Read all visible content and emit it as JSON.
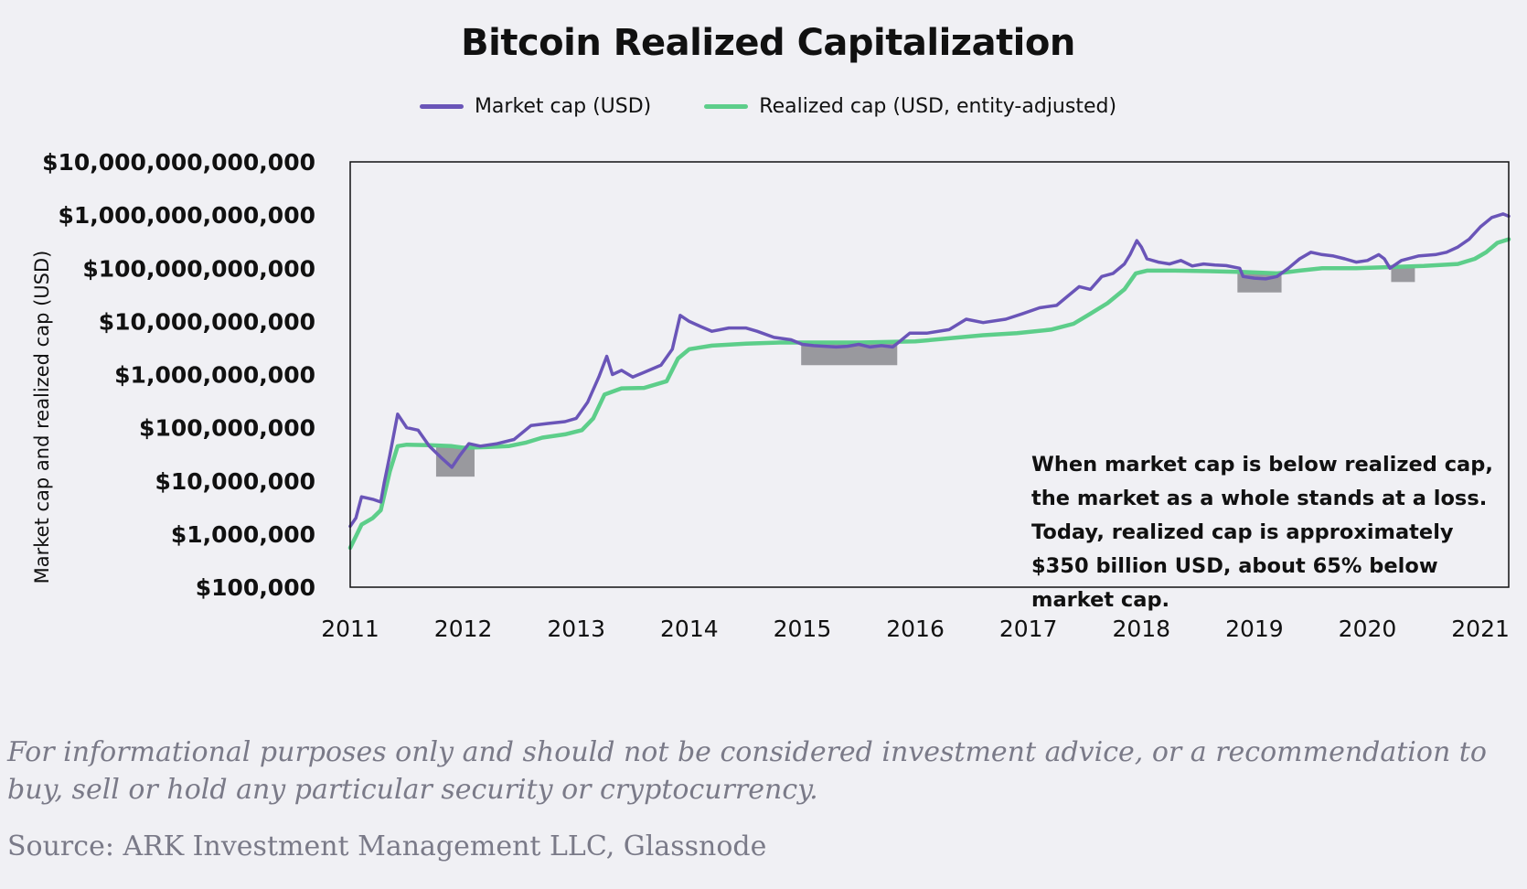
{
  "chart_data": {
    "type": "line",
    "title": "Bitcoin Realized Capitalization",
    "ylabel": "Market cap and realized cap (USD)",
    "xlabel": "",
    "y_scale": "log10",
    "ylim": [
      100000,
      10000000000000
    ],
    "xlim": [
      2011.0,
      2021.25
    ],
    "grid": false,
    "legend_position": "top-center",
    "y_ticks": [
      {
        "value": 100000,
        "label": "$100,000"
      },
      {
        "value": 1000000,
        "label": "$1,000,000"
      },
      {
        "value": 10000000,
        "label": "$10,000,000"
      },
      {
        "value": 100000000,
        "label": "$100,000,000"
      },
      {
        "value": 1000000000,
        "label": "$1,000,000,000"
      },
      {
        "value": 10000000000,
        "label": "$10,000,000,000"
      },
      {
        "value": 100000000000,
        "label": "$100,000,000,000"
      },
      {
        "value": 1000000000000,
        "label": "$1,000,000,000,000"
      },
      {
        "value": 10000000000000,
        "label": "$10,000,000,000,000"
      }
    ],
    "x_ticks": [
      {
        "value": 2011,
        "label": "2011"
      },
      {
        "value": 2012,
        "label": "2012"
      },
      {
        "value": 2013,
        "label": "2013"
      },
      {
        "value": 2014,
        "label": "2014"
      },
      {
        "value": 2015,
        "label": "2015"
      },
      {
        "value": 2016,
        "label": "2016"
      },
      {
        "value": 2017,
        "label": "2017"
      },
      {
        "value": 2018,
        "label": "2018"
      },
      {
        "value": 2019,
        "label": "2019"
      },
      {
        "value": 2020,
        "label": "2020"
      },
      {
        "value": 2021,
        "label": "2021"
      }
    ],
    "series": [
      {
        "name": "Market cap (USD)",
        "color": "#6a55b8",
        "points": [
          [
            2011.0,
            1400000
          ],
          [
            2011.05,
            2000000
          ],
          [
            2011.1,
            5000000
          ],
          [
            2011.2,
            4500000
          ],
          [
            2011.27,
            4000000
          ],
          [
            2011.3,
            9000000
          ],
          [
            2011.35,
            30000000
          ],
          [
            2011.42,
            180000000
          ],
          [
            2011.5,
            100000000
          ],
          [
            2011.6,
            90000000
          ],
          [
            2011.7,
            45000000
          ],
          [
            2011.8,
            28000000
          ],
          [
            2011.9,
            18000000
          ],
          [
            2011.97,
            30000000
          ],
          [
            2012.05,
            50000000
          ],
          [
            2012.15,
            45000000
          ],
          [
            2012.3,
            50000000
          ],
          [
            2012.45,
            60000000
          ],
          [
            2012.6,
            110000000
          ],
          [
            2012.75,
            120000000
          ],
          [
            2012.9,
            130000000
          ],
          [
            2013.0,
            150000000
          ],
          [
            2013.1,
            300000000
          ],
          [
            2013.2,
            900000000
          ],
          [
            2013.27,
            2200000000
          ],
          [
            2013.32,
            1000000000
          ],
          [
            2013.4,
            1200000000
          ],
          [
            2013.5,
            900000000
          ],
          [
            2013.6,
            1100000000
          ],
          [
            2013.75,
            1500000000
          ],
          [
            2013.85,
            3000000000
          ],
          [
            2013.92,
            13000000000
          ],
          [
            2014.0,
            10000000000
          ],
          [
            2014.1,
            8000000000
          ],
          [
            2014.2,
            6500000000
          ],
          [
            2014.35,
            7500000000
          ],
          [
            2014.5,
            7500000000
          ],
          [
            2014.6,
            6500000000
          ],
          [
            2014.75,
            5000000000
          ],
          [
            2014.9,
            4500000000
          ],
          [
            2015.0,
            3700000000
          ],
          [
            2015.1,
            3500000000
          ],
          [
            2015.2,
            3400000000
          ],
          [
            2015.3,
            3300000000
          ],
          [
            2015.4,
            3400000000
          ],
          [
            2015.5,
            3700000000
          ],
          [
            2015.6,
            3300000000
          ],
          [
            2015.7,
            3500000000
          ],
          [
            2015.8,
            3300000000
          ],
          [
            2015.85,
            4000000000
          ],
          [
            2015.95,
            6000000000
          ],
          [
            2016.1,
            6000000000
          ],
          [
            2016.3,
            7000000000
          ],
          [
            2016.45,
            11000000000
          ],
          [
            2016.6,
            9500000000
          ],
          [
            2016.8,
            11000000000
          ],
          [
            2016.95,
            14000000000
          ],
          [
            2017.1,
            18000000000
          ],
          [
            2017.25,
            20000000000
          ],
          [
            2017.35,
            30000000000
          ],
          [
            2017.45,
            45000000000
          ],
          [
            2017.55,
            40000000000
          ],
          [
            2017.65,
            70000000000
          ],
          [
            2017.75,
            80000000000
          ],
          [
            2017.85,
            120000000000
          ],
          [
            2017.9,
            180000000000
          ],
          [
            2017.96,
            330000000000
          ],
          [
            2018.0,
            250000000000
          ],
          [
            2018.05,
            150000000000
          ],
          [
            2018.15,
            130000000000
          ],
          [
            2018.25,
            120000000000
          ],
          [
            2018.35,
            140000000000
          ],
          [
            2018.45,
            110000000000
          ],
          [
            2018.55,
            120000000000
          ],
          [
            2018.65,
            115000000000
          ],
          [
            2018.75,
            112000000000
          ],
          [
            2018.87,
            100000000000
          ],
          [
            2018.9,
            70000000000
          ],
          [
            2019.0,
            65000000000
          ],
          [
            2019.1,
            63000000000
          ],
          [
            2019.2,
            70000000000
          ],
          [
            2019.3,
            100000000000
          ],
          [
            2019.4,
            150000000000
          ],
          [
            2019.5,
            200000000000
          ],
          [
            2019.6,
            180000000000
          ],
          [
            2019.7,
            170000000000
          ],
          [
            2019.8,
            150000000000
          ],
          [
            2019.9,
            130000000000
          ],
          [
            2020.0,
            140000000000
          ],
          [
            2020.1,
            180000000000
          ],
          [
            2020.15,
            150000000000
          ],
          [
            2020.2,
            100000000000
          ],
          [
            2020.3,
            140000000000
          ],
          [
            2020.45,
            170000000000
          ],
          [
            2020.6,
            180000000000
          ],
          [
            2020.7,
            200000000000
          ],
          [
            2020.8,
            250000000000
          ],
          [
            2020.9,
            350000000000
          ],
          [
            2021.0,
            600000000000
          ],
          [
            2021.1,
            900000000000
          ],
          [
            2021.2,
            1050000000000
          ],
          [
            2021.25,
            950000000000
          ]
        ]
      },
      {
        "name": "Realized cap (USD, entity-adjusted)",
        "color": "#5dce8a",
        "points": [
          [
            2011.0,
            550000
          ],
          [
            2011.05,
            900000
          ],
          [
            2011.1,
            1500000
          ],
          [
            2011.2,
            2000000
          ],
          [
            2011.27,
            2800000
          ],
          [
            2011.35,
            15000000
          ],
          [
            2011.42,
            45000000
          ],
          [
            2011.5,
            48000000
          ],
          [
            2011.7,
            47000000
          ],
          [
            2011.9,
            45000000
          ],
          [
            2012.0,
            42000000
          ],
          [
            2012.2,
            43000000
          ],
          [
            2012.4,
            45000000
          ],
          [
            2012.55,
            52000000
          ],
          [
            2012.7,
            65000000
          ],
          [
            2012.9,
            75000000
          ],
          [
            2013.05,
            90000000
          ],
          [
            2013.15,
            150000000
          ],
          [
            2013.25,
            420000000
          ],
          [
            2013.4,
            550000000
          ],
          [
            2013.6,
            560000000
          ],
          [
            2013.8,
            750000000
          ],
          [
            2013.9,
            2000000000
          ],
          [
            2014.0,
            3000000000
          ],
          [
            2014.2,
            3500000000
          ],
          [
            2014.5,
            3800000000
          ],
          [
            2014.8,
            4000000000
          ],
          [
            2015.0,
            4000000000
          ],
          [
            2015.5,
            4000000000
          ],
          [
            2016.0,
            4200000000
          ],
          [
            2016.3,
            4800000000
          ],
          [
            2016.6,
            5500000000
          ],
          [
            2016.9,
            6000000000
          ],
          [
            2017.2,
            7000000000
          ],
          [
            2017.4,
            9000000000
          ],
          [
            2017.55,
            14000000000
          ],
          [
            2017.7,
            22000000000
          ],
          [
            2017.85,
            40000000000
          ],
          [
            2017.95,
            80000000000
          ],
          [
            2018.05,
            90000000000
          ],
          [
            2018.3,
            90000000000
          ],
          [
            2018.6,
            88000000000
          ],
          [
            2018.9,
            85000000000
          ],
          [
            2019.2,
            80000000000
          ],
          [
            2019.4,
            90000000000
          ],
          [
            2019.6,
            100000000000
          ],
          [
            2019.9,
            100000000000
          ],
          [
            2020.2,
            105000000000
          ],
          [
            2020.5,
            110000000000
          ],
          [
            2020.8,
            120000000000
          ],
          [
            2020.95,
            150000000000
          ],
          [
            2021.05,
            200000000000
          ],
          [
            2021.15,
            300000000000
          ],
          [
            2021.25,
            350000000000
          ]
        ]
      }
    ],
    "shaded_regions": [
      {
        "x0": 2011.76,
        "x1": 2012.1,
        "y0": 12000000,
        "y1": 45000000
      },
      {
        "x0": 2014.99,
        "x1": 2015.84,
        "y0": 1500000000,
        "y1": 4000000000
      },
      {
        "x0": 2018.85,
        "x1": 2019.24,
        "y0": 35000000000,
        "y1": 80000000000
      },
      {
        "x0": 2020.21,
        "x1": 2020.42,
        "y0": 55000000000,
        "y1": 105000000000
      }
    ],
    "annotation": "When market cap is below realized cap, the market as a whole stands at a loss. Today, realized cap is approximately $350 billion USD, about 65% below market cap."
  },
  "legend": {
    "market_cap_label": "Market cap (USD)",
    "realized_cap_label": "Realized cap (USD, entity-adjusted)"
  },
  "footer": {
    "disclaimer": "For informational purposes only and should not be considered investment advice, or a recommendation to buy, sell or hold any particular security or cryptocurrency.",
    "source": "Source: ARK Investment Management LLC, Glassnode"
  },
  "colors": {
    "market_cap": "#6a55b8",
    "realized_cap": "#5dce8a",
    "shade": "#8a8a8e",
    "background": "#f0f0f4"
  }
}
